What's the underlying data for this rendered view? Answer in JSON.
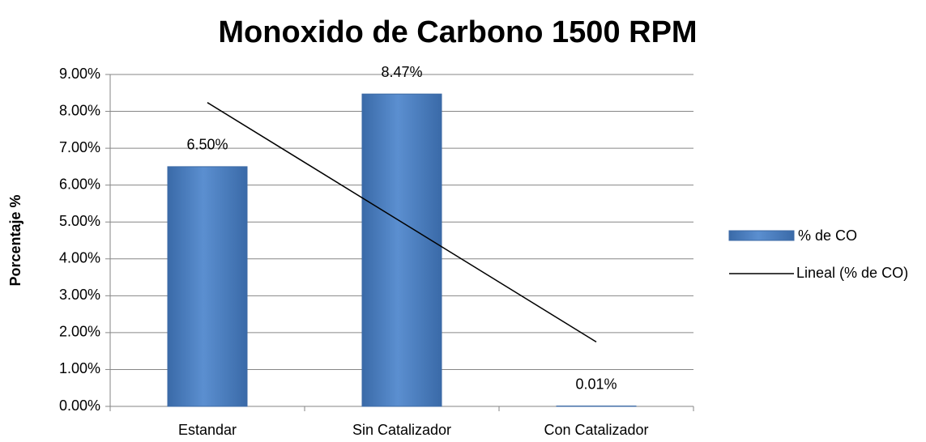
{
  "chart_data": {
    "type": "bar",
    "title": "Monoxido de Carbono 1500 RPM",
    "y_label": "Porcentaje %",
    "categories": [
      "Estandar",
      "Sin Catalizador",
      "Con Catalizador"
    ],
    "series": [
      {
        "name": "% de CO",
        "color": "#4f81bd",
        "values": [
          6.5,
          8.47,
          0.01
        ],
        "value_labels": [
          "6.50%",
          "8.47%",
          "0.01%"
        ]
      }
    ],
    "trendline": {
      "name": "Lineal (% de CO)",
      "kind": "linear",
      "color": "#000000"
    },
    "ylim": [
      0,
      9
    ],
    "yticks": [
      {
        "value": 0,
        "label": "0.00%"
      },
      {
        "value": 1,
        "label": "1.00%"
      },
      {
        "value": 2,
        "label": "2.00%"
      },
      {
        "value": 3,
        "label": "3.00%"
      },
      {
        "value": 4,
        "label": "4.00%"
      },
      {
        "value": 5,
        "label": "5.00%"
      },
      {
        "value": 6,
        "label": "6.00%"
      },
      {
        "value": 7,
        "label": "7.00%"
      },
      {
        "value": 8,
        "label": "8.00%"
      },
      {
        "value": 9,
        "label": "9.00%"
      }
    ],
    "grid": true,
    "legend": "right"
  }
}
